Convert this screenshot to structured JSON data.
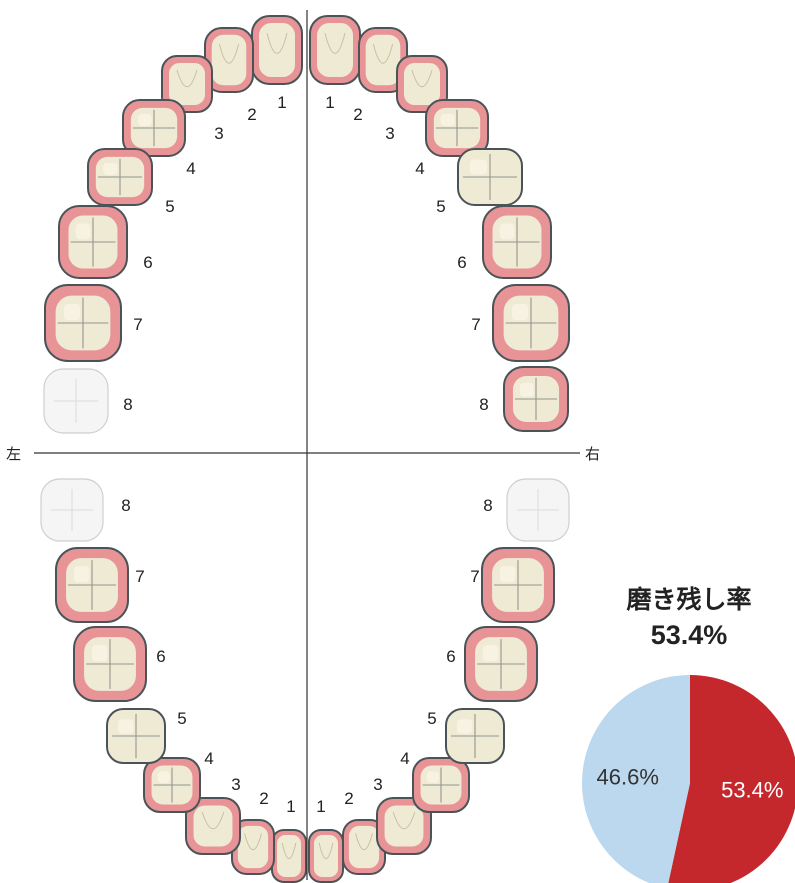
{
  "side_labels": {
    "left": "左",
    "right": "右"
  },
  "summary": {
    "title": "磨き残し率",
    "rate": "53.4%"
  },
  "pie": {
    "slices": [
      {
        "key": "remaining",
        "label": "53.4%",
        "value": 53.4,
        "color": "#c4272c",
        "text_color": "#ffffff"
      },
      {
        "key": "clean",
        "label": "46.6%",
        "value": 46.6,
        "color": "#bcd8ee",
        "text_color": "#333333"
      }
    ]
  },
  "colors": {
    "plaque": "#e89497",
    "tooth": "#efead3",
    "outline": "#4a5458",
    "missing": "#f5f5f5"
  },
  "teeth": [
    {
      "quadrant": "upper-left",
      "number": "1",
      "plaque": true,
      "present": true
    },
    {
      "quadrant": "upper-left",
      "number": "2",
      "plaque": true,
      "present": true
    },
    {
      "quadrant": "upper-left",
      "number": "3",
      "plaque": true,
      "present": true
    },
    {
      "quadrant": "upper-left",
      "number": "4",
      "plaque": true,
      "present": true
    },
    {
      "quadrant": "upper-left",
      "number": "5",
      "plaque": true,
      "present": true
    },
    {
      "quadrant": "upper-left",
      "number": "6",
      "plaque": true,
      "present": true
    },
    {
      "quadrant": "upper-left",
      "number": "7",
      "plaque": true,
      "present": true
    },
    {
      "quadrant": "upper-left",
      "number": "8",
      "plaque": false,
      "present": false
    },
    {
      "quadrant": "upper-right",
      "number": "1",
      "plaque": true,
      "present": true
    },
    {
      "quadrant": "upper-right",
      "number": "2",
      "plaque": true,
      "present": true
    },
    {
      "quadrant": "upper-right",
      "number": "3",
      "plaque": true,
      "present": true
    },
    {
      "quadrant": "upper-right",
      "number": "4",
      "plaque": true,
      "present": true
    },
    {
      "quadrant": "upper-right",
      "number": "5",
      "plaque": false,
      "present": true
    },
    {
      "quadrant": "upper-right",
      "number": "6",
      "plaque": true,
      "present": true
    },
    {
      "quadrant": "upper-right",
      "number": "7",
      "plaque": true,
      "present": true
    },
    {
      "quadrant": "upper-right",
      "number": "8",
      "plaque": true,
      "present": true
    },
    {
      "quadrant": "lower-left",
      "number": "1",
      "plaque": true,
      "present": true
    },
    {
      "quadrant": "lower-left",
      "number": "2",
      "plaque": true,
      "present": true
    },
    {
      "quadrant": "lower-left",
      "number": "3",
      "plaque": true,
      "present": true
    },
    {
      "quadrant": "lower-left",
      "number": "4",
      "plaque": true,
      "present": true
    },
    {
      "quadrant": "lower-left",
      "number": "5",
      "plaque": false,
      "present": true
    },
    {
      "quadrant": "lower-left",
      "number": "6",
      "plaque": true,
      "present": true
    },
    {
      "quadrant": "lower-left",
      "number": "7",
      "plaque": true,
      "present": true
    },
    {
      "quadrant": "lower-left",
      "number": "8",
      "plaque": false,
      "present": false
    },
    {
      "quadrant": "lower-right",
      "number": "1",
      "plaque": true,
      "present": true
    },
    {
      "quadrant": "lower-right",
      "number": "2",
      "plaque": true,
      "present": true
    },
    {
      "quadrant": "lower-right",
      "number": "3",
      "plaque": true,
      "present": true
    },
    {
      "quadrant": "lower-right",
      "number": "4",
      "plaque": true,
      "present": true
    },
    {
      "quadrant": "lower-right",
      "number": "5",
      "plaque": false,
      "present": true
    },
    {
      "quadrant": "lower-right",
      "number": "6",
      "plaque": true,
      "present": true
    },
    {
      "quadrant": "lower-right",
      "number": "7",
      "plaque": true,
      "present": true
    },
    {
      "quadrant": "lower-right",
      "number": "8",
      "plaque": false,
      "present": false
    }
  ]
}
